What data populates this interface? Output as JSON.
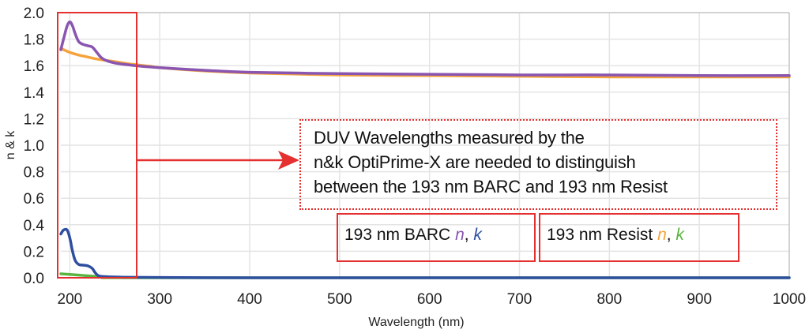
{
  "chart_data": {
    "type": "line",
    "title": "",
    "xlabel": "Wavelength (nm)",
    "ylabel": "n & k",
    "xlim": [
      190,
      1000
    ],
    "ylim": [
      0,
      2.0
    ],
    "grid": true,
    "x_ticks": [
      "200",
      "300",
      "400",
      "500",
      "600",
      "700",
      "800",
      "900",
      "1000"
    ],
    "y_ticks": [
      "0.0",
      "0.2",
      "0.4",
      "0.6",
      "0.8",
      "1.0",
      "1.2",
      "1.4",
      "1.6",
      "1.8",
      "2.0"
    ],
    "series": [
      {
        "name": "193 nm BARC n",
        "color": "#8a55b0",
        "x": [
          190,
          193,
          197,
          200,
          203,
          206,
          210,
          215,
          220,
          225,
          230,
          235,
          240,
          250,
          260,
          280,
          300,
          350,
          400,
          500,
          600,
          700,
          800,
          900,
          1000
        ],
        "y": [
          1.72,
          1.8,
          1.9,
          1.93,
          1.9,
          1.84,
          1.78,
          1.76,
          1.75,
          1.74,
          1.7,
          1.66,
          1.64,
          1.62,
          1.61,
          1.595,
          1.585,
          1.565,
          1.55,
          1.54,
          1.535,
          1.53,
          1.53,
          1.525,
          1.525
        ]
      },
      {
        "name": "193 nm BARC k",
        "color": "#2e4fa0",
        "x": [
          190,
          193,
          197,
          200,
          203,
          206,
          210,
          215,
          220,
          225,
          228,
          232,
          240,
          260,
          300,
          400,
          600,
          800,
          1000
        ],
        "y": [
          0.33,
          0.36,
          0.36,
          0.3,
          0.2,
          0.13,
          0.1,
          0.095,
          0.09,
          0.07,
          0.04,
          0.015,
          0.008,
          0.004,
          0.002,
          0.0,
          0.0,
          0.0,
          0.0
        ]
      },
      {
        "name": "193 nm Resist n",
        "color": "#f5a33a",
        "x": [
          190,
          200,
          210,
          220,
          230,
          250,
          270,
          290,
          300,
          350,
          400,
          500,
          600,
          700,
          800,
          900,
          1000
        ],
        "y": [
          1.73,
          1.7,
          1.68,
          1.665,
          1.65,
          1.63,
          1.61,
          1.595,
          1.585,
          1.56,
          1.545,
          1.53,
          1.525,
          1.52,
          1.515,
          1.515,
          1.515
        ]
      },
      {
        "name": "193 nm Resist k",
        "color": "#5ab540",
        "x": [
          190,
          200,
          210,
          220,
          230,
          240,
          260,
          300,
          1000
        ],
        "y": [
          0.03,
          0.025,
          0.02,
          0.015,
          0.01,
          0.005,
          0.002,
          0.0,
          0.0
        ]
      }
    ],
    "annotations": [
      {
        "type": "box",
        "style": "solid",
        "color": "#e53030",
        "x_range": [
          190,
          290
        ],
        "y_range": [
          0,
          2.0
        ]
      },
      {
        "type": "arrow",
        "color": "#e53030",
        "from_x": 290,
        "y": 0.91,
        "to": "text-box"
      }
    ]
  },
  "annotation": {
    "lines": [
      "DUV Wavelengths measured by the",
      "n&k OptiPrime-X are needed to distinguish",
      "between the 193 nm BARC and 193 nm Resist"
    ]
  },
  "legend": {
    "barc": {
      "prefix": "193 nm BARC ",
      "n": "n",
      "sep": ", ",
      "k": "k",
      "n_color": "#8a55b0",
      "k_color": "#2e4fa0"
    },
    "resist": {
      "prefix": "193 nm Resist ",
      "n": "n",
      "sep": ", ",
      "k": "k",
      "n_color": "#f5a33a",
      "k_color": "#5ab540"
    }
  }
}
